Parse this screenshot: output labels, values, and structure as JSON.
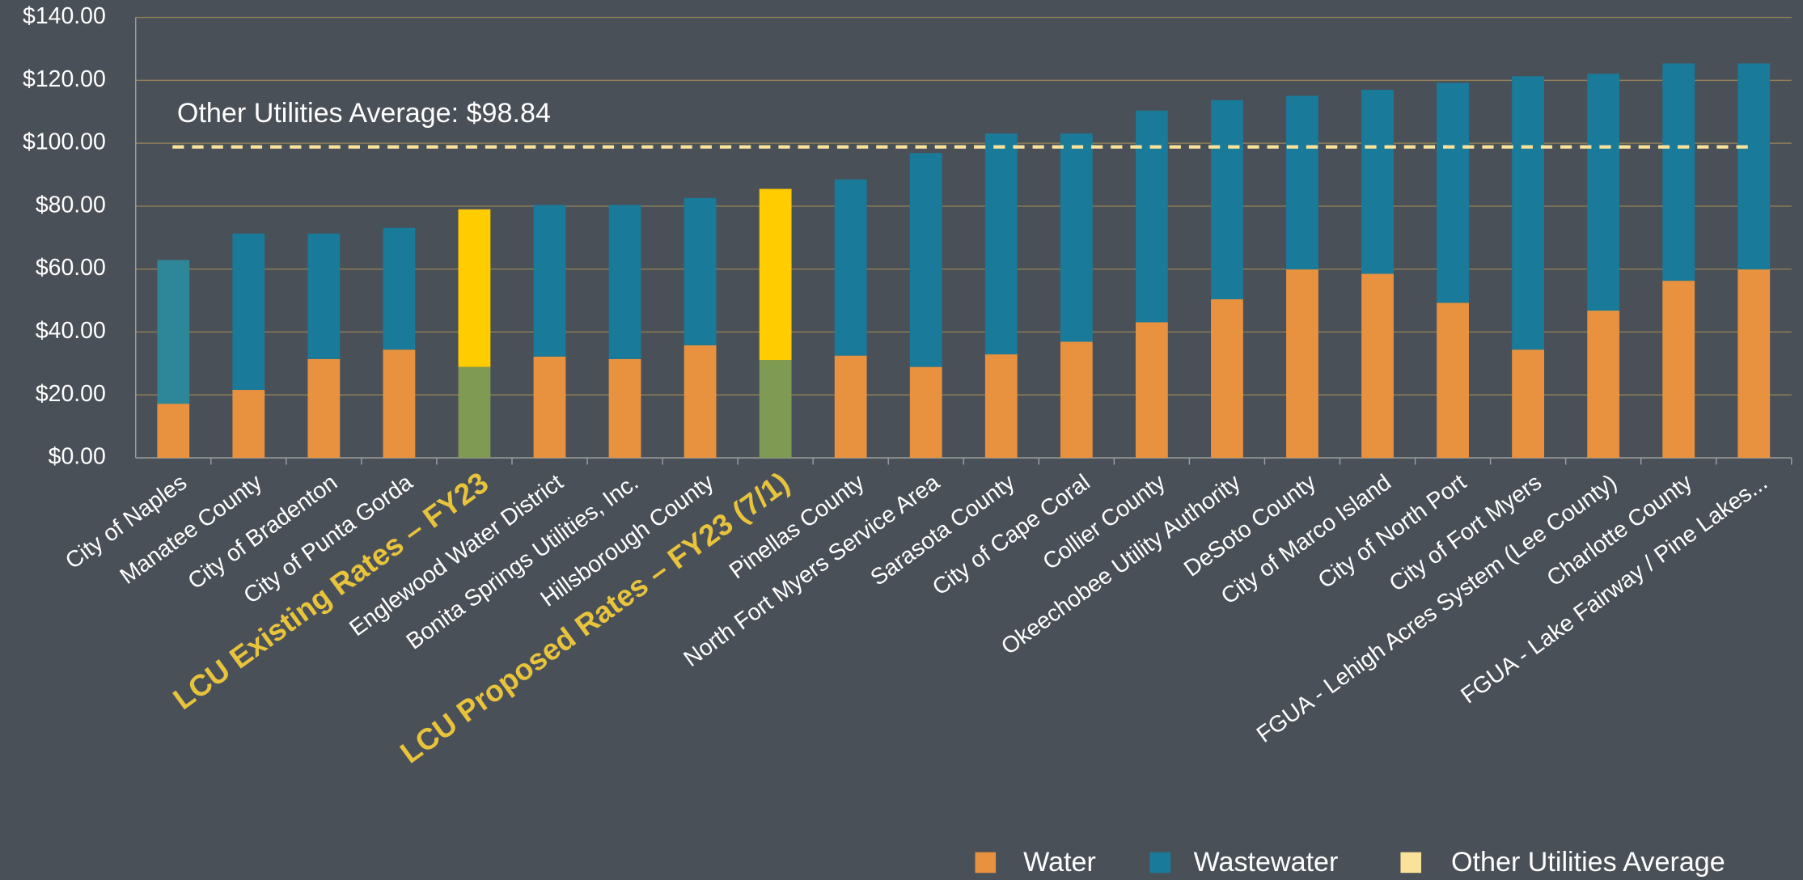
{
  "chart_data": {
    "type": "stacked_bar",
    "categories": [
      "City of Naples",
      "Manatee County",
      "City of Bradenton",
      "City of Punta Gorda",
      "LCU Existing Rates – FY23",
      "Englewood Water District",
      "Bonita Springs Utilities, Inc.",
      "Hillsborough County",
      "LCU Proposed Rates – FY23 (7/1)",
      "Pinellas County",
      "North Fort Myers Service Area",
      "Sarasota County",
      "City of Cape Coral",
      "Collier County",
      "Okeechobee Utility Authority",
      "DeSoto County",
      "City of Marco Island",
      "City of North Port",
      "City of Fort Myers",
      "FGUA - Lehigh Acres System (Lee County)",
      "Charlotte County",
      "FGUA - Lake Fairway / Pine Lakes..."
    ],
    "category_colors": [
      "#ffffff",
      "#ffffff",
      "#ffffff",
      "#ffffff",
      "#e8c33c",
      "#ffffff",
      "#ffffff",
      "#ffffff",
      "#e8c33c",
      "#ffffff",
      "#ffffff",
      "#ffffff",
      "#ffffff",
      "#ffffff",
      "#ffffff",
      "#ffffff",
      "#ffffff",
      "#ffffff",
      "#ffffff",
      "#ffffff",
      "#ffffff",
      "#ffffff"
    ],
    "series": [
      {
        "name": "Water",
        "color": "#e8923f",
        "colors": [
          "#e8923f",
          "#e8923f",
          "#e8923f",
          "#e8923f",
          "#7f9a52",
          "#e8923f",
          "#e8923f",
          "#e8923f",
          "#7f9a52",
          "#e8923f",
          "#e8923f",
          "#e8923f",
          "#e8923f",
          "#e8923f",
          "#e8923f",
          "#e8923f",
          "#e8923f",
          "#e8923f",
          "#e8923f",
          "#e8923f",
          "#e8923f",
          "#e8923f"
        ],
        "values": [
          17.2,
          21.6,
          31.4,
          34.4,
          28.9,
          32.2,
          31.4,
          35.8,
          31.1,
          32.5,
          28.9,
          32.9,
          36.9,
          43.1,
          50.4,
          59.9,
          58.5,
          49.3,
          34.4,
          46.8,
          56.3,
          59.9
        ]
      },
      {
        "name": "Wastewater",
        "color": "#1a7a9a",
        "colors": [
          "#2e8799",
          "#1a7a9a",
          "#1a7a9a",
          "#1a7a9a",
          "#ffcc00",
          "#1a7a9a",
          "#1a7a9a",
          "#1a7a9a",
          "#ffcc00",
          "#1a7a9a",
          "#1a7a9a",
          "#1a7a9a",
          "#1a7a9a",
          "#1a7a9a",
          "#1a7a9a",
          "#1a7a9a",
          "#1a7a9a",
          "#1a7a9a",
          "#1a7a9a",
          "#1a7a9a",
          "#1a7a9a",
          "#1a7a9a"
        ],
        "values": [
          45.7,
          49.7,
          39.9,
          38.7,
          50.1,
          48.2,
          49.0,
          46.8,
          54.4,
          56.0,
          68.0,
          70.2,
          66.2,
          67.3,
          63.3,
          55.2,
          58.5,
          69.9,
          86.9,
          75.3,
          69.1,
          65.5
        ]
      }
    ],
    "reference_line": {
      "name": "Other Utilities Average",
      "label": "Other Utilities Average: $98.84",
      "value": 98.84,
      "color": "#fbe29a"
    },
    "ylim": [
      0,
      140
    ],
    "yticks": [
      {
        "value": 0,
        "label": "$0.00"
      },
      {
        "value": 20,
        "label": "$20.00"
      },
      {
        "value": 40,
        "label": "$40.00"
      },
      {
        "value": 60,
        "label": "$60.00"
      },
      {
        "value": 80,
        "label": "$80.00"
      },
      {
        "value": 100,
        "label": "$100.00"
      },
      {
        "value": 120,
        "label": "$120.00"
      },
      {
        "value": 140,
        "label": "$140.00"
      }
    ],
    "grid": true,
    "legend": "bottom-right"
  }
}
